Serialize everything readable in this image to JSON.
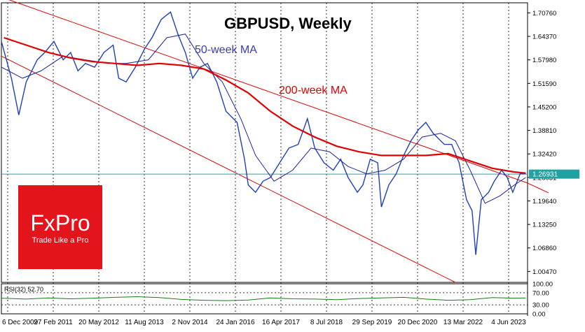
{
  "chart_data": {
    "type": "line",
    "title": "GBPUSD, Weekly",
    "annotations": {
      "ma50": "50-week MA",
      "ma200": "200-week MA"
    },
    "current_price": "1.26931",
    "price_axis": {
      "ticks": [
        "1.70760",
        "1.64370",
        "1.57980",
        "1.51590",
        "1.45200",
        "1.38810",
        "1.32420",
        "1.26031",
        "1.19640",
        "1.13250",
        "1.06860",
        "1.00470"
      ],
      "ylim": [
        0.975,
        1.735
      ]
    },
    "date_labels": [
      "6 Dec 2009",
      "27 Feb 2011",
      "20 May 2012",
      "11 Aug 2013",
      "2 Nov 2014",
      "24 Jan 2016",
      "16 Apr 2017",
      "8 Jul 2018",
      "29 Sep 2019",
      "20 Dec 2020",
      "13 Mar 2022",
      "4 Jun 2023"
    ],
    "xlim": [
      2009.93,
      2024.15
    ],
    "price": {
      "name": "GBPUSD",
      "x": [
        2009.93,
        2010.2,
        2010.4,
        2010.6,
        2010.9,
        2011.1,
        2011.35,
        2011.6,
        2011.8,
        2012.0,
        2012.2,
        2012.45,
        2012.7,
        2012.95,
        2013.1,
        2013.3,
        2013.55,
        2013.8,
        2014.0,
        2014.25,
        2014.5,
        2014.7,
        2014.9,
        2015.1,
        2015.3,
        2015.5,
        2015.75,
        2016.0,
        2016.3,
        2016.5,
        2016.6,
        2016.8,
        2017.0,
        2017.2,
        2017.45,
        2017.7,
        2017.95,
        2018.2,
        2018.4,
        2018.65,
        2018.9,
        2019.1,
        2019.3,
        2019.55,
        2019.7,
        2019.9,
        2020.1,
        2020.2,
        2020.4,
        2020.6,
        2020.8,
        2021.0,
        2021.2,
        2021.4,
        2021.6,
        2021.9,
        2022.1,
        2022.3,
        2022.5,
        2022.65,
        2022.75,
        2022.9,
        2023.1,
        2023.25,
        2023.45,
        2023.6,
        2023.75,
        2023.95,
        2024.1
      ],
      "y": [
        1.63,
        1.53,
        1.43,
        1.52,
        1.58,
        1.6,
        1.63,
        1.58,
        1.6,
        1.55,
        1.57,
        1.56,
        1.6,
        1.62,
        1.53,
        1.52,
        1.56,
        1.61,
        1.64,
        1.69,
        1.71,
        1.65,
        1.6,
        1.53,
        1.56,
        1.57,
        1.52,
        1.44,
        1.41,
        1.31,
        1.24,
        1.22,
        1.25,
        1.26,
        1.3,
        1.34,
        1.35,
        1.42,
        1.34,
        1.3,
        1.28,
        1.31,
        1.26,
        1.22,
        1.24,
        1.31,
        1.3,
        1.18,
        1.24,
        1.27,
        1.32,
        1.36,
        1.39,
        1.41,
        1.38,
        1.35,
        1.35,
        1.3,
        1.2,
        1.17,
        1.05,
        1.2,
        1.22,
        1.25,
        1.28,
        1.26,
        1.22,
        1.27,
        1.27
      ]
    },
    "ma50": {
      "name": "50-week MA",
      "x": [
        2009.93,
        2010.5,
        2011.0,
        2011.6,
        2012.2,
        2012.8,
        2013.3,
        2013.9,
        2014.4,
        2014.9,
        2015.4,
        2015.9,
        2016.4,
        2016.8,
        2017.3,
        2017.8,
        2018.3,
        2018.8,
        2019.3,
        2019.8,
        2020.3,
        2020.8,
        2021.3,
        2021.8,
        2022.2,
        2022.6,
        2023.0,
        2023.4,
        2023.8,
        2024.1
      ],
      "y": [
        1.56,
        1.53,
        1.55,
        1.59,
        1.58,
        1.57,
        1.57,
        1.58,
        1.64,
        1.65,
        1.57,
        1.52,
        1.42,
        1.32,
        1.25,
        1.28,
        1.34,
        1.33,
        1.29,
        1.27,
        1.28,
        1.31,
        1.37,
        1.38,
        1.36,
        1.28,
        1.19,
        1.21,
        1.24,
        1.26
      ]
    },
    "ma200": {
      "name": "200-week MA",
      "x": [
        2010.0,
        2010.6,
        2011.2,
        2011.8,
        2012.4,
        2013.0,
        2013.6,
        2014.2,
        2014.8,
        2015.4,
        2016.0,
        2016.6,
        2017.2,
        2017.8,
        2018.4,
        2019.0,
        2019.6,
        2020.2,
        2020.8,
        2021.4,
        2022.0,
        2022.6,
        2023.2,
        2023.8,
        2024.1
      ],
      "y": [
        1.64,
        1.62,
        1.6,
        1.585,
        1.575,
        1.57,
        1.565,
        1.57,
        1.565,
        1.555,
        1.525,
        1.49,
        1.44,
        1.4,
        1.37,
        1.345,
        1.33,
        1.32,
        1.32,
        1.32,
        1.325,
        1.305,
        1.285,
        1.275,
        1.272
      ]
    },
    "channel": {
      "upper": {
        "x": [
          2010.0,
          2024.15
        ],
        "y": [
          1.748,
          1.245
        ]
      },
      "lower": {
        "x": [
          2009.93,
          2022.2
        ],
        "y": [
          1.59,
          0.975
        ]
      }
    },
    "rsi": {
      "label": "RSI(32) 52.70",
      "ticks": [
        "100.00",
        "70.00",
        "30.00",
        "0.00"
      ],
      "ylim": [
        0,
        100
      ],
      "x": [
        2009.93,
        2010.6,
        2011.2,
        2011.8,
        2012.4,
        2013.0,
        2013.6,
        2014.2,
        2014.8,
        2015.4,
        2016.0,
        2016.6,
        2017.2,
        2017.8,
        2018.4,
        2019.0,
        2019.6,
        2020.2,
        2020.8,
        2021.4,
        2022.0,
        2022.6,
        2023.2,
        2023.8,
        2024.1
      ],
      "y": [
        52,
        49,
        53,
        50,
        52,
        55,
        57,
        54,
        48,
        45,
        44,
        46,
        53,
        50,
        49,
        47,
        51,
        53,
        55,
        49,
        45,
        47,
        54,
        52,
        53
      ]
    }
  },
  "logo": {
    "name": "FxPro",
    "tagline": "Trade Like a Pro",
    "color": "#e3141c"
  },
  "colors": {
    "price": "#1f3fbf",
    "ma50": "#2020a0",
    "ma200": "#e00000",
    "channel": "#e00000",
    "hline": "#21a2a2",
    "rsi": "#1a7a1a"
  }
}
